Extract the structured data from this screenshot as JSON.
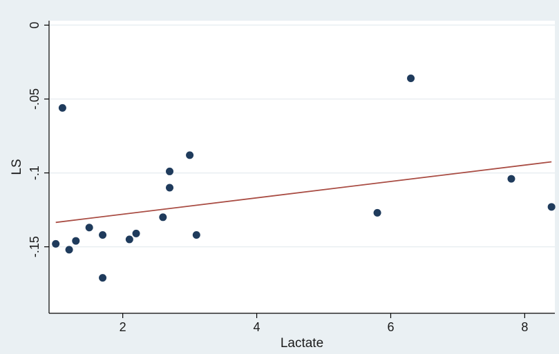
{
  "chart_data": {
    "type": "scatter",
    "title": "",
    "xlabel": "Lactate",
    "ylabel": "LS",
    "xlim": [
      0.9,
      8.45
    ],
    "ylim": [
      -0.195,
      0.003
    ],
    "x_ticks": [
      2,
      4,
      6,
      8
    ],
    "x_tick_labels": [
      "2",
      "4",
      "6",
      "8"
    ],
    "y_ticks": [
      0,
      -0.05,
      -0.1,
      -0.15
    ],
    "y_tick_labels": [
      "0",
      "-.05",
      "-.1",
      "-.15"
    ],
    "grid": true,
    "colors": {
      "background": "#eaf0f3",
      "plot_area": "#ffffff",
      "grid": "#e9eef1",
      "points": "#1f3b5c",
      "fit_line": "#a94c43"
    },
    "series": [
      {
        "type": "scatter",
        "x": [
          1.0,
          1.1,
          1.2,
          1.3,
          1.5,
          1.7,
          1.7,
          2.1,
          2.2,
          2.6,
          2.7,
          2.7,
          3.0,
          3.1,
          5.8,
          6.3,
          7.8,
          8.4
        ],
        "y": [
          -0.148,
          -0.056,
          -0.152,
          -0.146,
          -0.137,
          -0.142,
          -0.171,
          -0.145,
          -0.141,
          -0.13,
          -0.099,
          -0.11,
          -0.088,
          -0.142,
          -0.127,
          -0.036,
          -0.104,
          -0.123
        ]
      },
      {
        "type": "line",
        "x": [
          1.0,
          8.4
        ],
        "y": [
          -0.1335,
          -0.0925
        ]
      }
    ]
  }
}
